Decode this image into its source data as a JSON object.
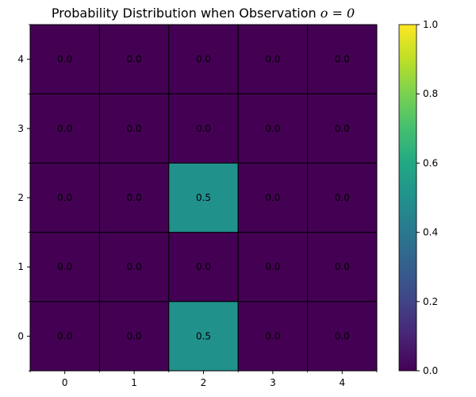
{
  "chart_data": {
    "type": "heatmap",
    "title": "Probability Distribution when Observation ",
    "title_math": "o = 0",
    "xlabel": "",
    "ylabel": "",
    "x_ticks": [
      "0",
      "1",
      "2",
      "3",
      "4"
    ],
    "y_ticks": [
      "0",
      "1",
      "2",
      "3",
      "4"
    ],
    "rows": [
      {
        "y": 4,
        "values": [
          0.0,
          0.0,
          0.0,
          0.0,
          0.0
        ],
        "labels": [
          "0.0",
          "0.0",
          "0.0",
          "0.0",
          "0.0"
        ]
      },
      {
        "y": 3,
        "values": [
          0.0,
          0.0,
          0.0,
          0.0,
          0.0
        ],
        "labels": [
          "0.0",
          "0.0",
          "0.0",
          "0.0",
          "0.0"
        ]
      },
      {
        "y": 2,
        "values": [
          0.0,
          0.0,
          0.5,
          0.0,
          0.0
        ],
        "labels": [
          "0.0",
          "0.0",
          "0.5",
          "0.0",
          "0.0"
        ]
      },
      {
        "y": 1,
        "values": [
          0.0,
          0.0,
          0.0,
          0.0,
          0.0
        ],
        "labels": [
          "0.0",
          "0.0",
          "0.0",
          "0.0",
          "0.0"
        ]
      },
      {
        "y": 0,
        "values": [
          0.0,
          0.0,
          0.5,
          0.0,
          0.0
        ],
        "labels": [
          "0.0",
          "0.0",
          "0.5",
          "0.0",
          "0.0"
        ]
      }
    ],
    "colorbar": {
      "colormap": "viridis",
      "min": 0.0,
      "max": 1.0,
      "ticks": [
        "0.0",
        "0.2",
        "0.4",
        "0.6",
        "0.8",
        "1.0"
      ]
    },
    "grid": true,
    "legend": "none"
  }
}
